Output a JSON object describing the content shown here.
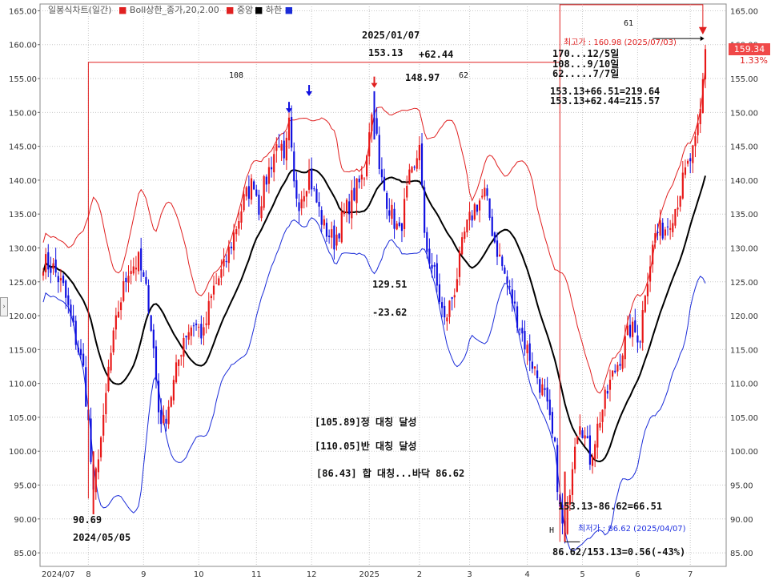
{
  "legend": {
    "title": "일봉식차트(일간)",
    "boll_upper": "Boll상한_종가,20,2.00",
    "middle": "중앙",
    "lower": "하한",
    "colors": {
      "upper": "#e02020",
      "middle": "#000000",
      "lower": "#1a2bd8"
    }
  },
  "price_tag": {
    "value": "159.34",
    "change": "1.33%"
  },
  "annotations": {
    "date_high": "2025/01/07",
    "price_high": "153.13",
    "diff_up": "+62.44",
    "val_14897": "148.97",
    "label_62": "62",
    "label_108": "108",
    "label_61": "61",
    "max_price": "최고가 : 160.98 (2025/07/03)",
    "cycle1": "170...12/5일",
    "cycle2": "108...9/10일",
    "cycle3": "62.....7/7일",
    "calc1": "153.13+66.51=219.64",
    "calc2": "153.13+62.44=215.57",
    "val_12951": "129.51",
    "diff_down": "-23.62",
    "target1": "[105.89]정 대칭 달성",
    "target2": "[110.05]반 대칭 달성",
    "target3": "[86.43] 합 대칭...바닥 86.62",
    "low_price": "90.69",
    "low_date": "2024/05/05",
    "range_calc": "153.13-86.62=66.51",
    "min_price": "최저가 : 86.62 (2025/04/07)",
    "min_marker": "H",
    "ratio_calc": "86.62/153.13=0.56(-43%)"
  },
  "chart_data": {
    "type": "candlestick",
    "title": "",
    "y_range": [
      83,
      166
    ],
    "y_ticks": [
      "165.00",
      "160.00",
      "155.00",
      "150.00",
      "145.00",
      "140.00",
      "135.00",
      "130.00",
      "125.00",
      "120.00",
      "115.00",
      "110.00",
      "105.00",
      "100.00",
      "95.00",
      "90.00",
      "85.00"
    ],
    "y_tick_values": [
      165,
      160,
      155,
      150,
      145,
      140,
      135,
      130,
      125,
      120,
      115,
      110,
      105,
      100,
      95,
      90,
      85
    ],
    "x_labels": [
      "2024/07",
      "8",
      "9",
      "10",
      "11",
      "12",
      "2025",
      "2",
      "3",
      "4",
      "5",
      "6",
      "7"
    ],
    "x_label_index": [
      0,
      18,
      40,
      62,
      85,
      107,
      130,
      150,
      170,
      193,
      215,
      237,
      258
    ],
    "n_days": 265,
    "anchors": [
      [
        0,
        128
      ],
      [
        4,
        127
      ],
      [
        8,
        124
      ],
      [
        12,
        118
      ],
      [
        16,
        112
      ],
      [
        18,
        104
      ],
      [
        20,
        93
      ],
      [
        22,
        100
      ],
      [
        24,
        104
      ],
      [
        26,
        112
      ],
      [
        30,
        121
      ],
      [
        34,
        127
      ],
      [
        38,
        128
      ],
      [
        42,
        122
      ],
      [
        44,
        115
      ],
      [
        46,
        106
      ],
      [
        48,
        104
      ],
      [
        52,
        110
      ],
      [
        56,
        117
      ],
      [
        60,
        119
      ],
      [
        64,
        117
      ],
      [
        66,
        121
      ],
      [
        68,
        124
      ],
      [
        72,
        127
      ],
      [
        76,
        132
      ],
      [
        80,
        137
      ],
      [
        84,
        140
      ],
      [
        86,
        136
      ],
      [
        88,
        139
      ],
      [
        92,
        144
      ],
      [
        94,
        146
      ],
      [
        96,
        142
      ],
      [
        98,
        148
      ],
      [
        100,
        139
      ],
      [
        102,
        137
      ],
      [
        106,
        141
      ],
      [
        108,
        138
      ],
      [
        112,
        133
      ],
      [
        116,
        131
      ],
      [
        120,
        135
      ],
      [
        124,
        138
      ],
      [
        128,
        141
      ],
      [
        130,
        148
      ],
      [
        132,
        151
      ],
      [
        134,
        141
      ],
      [
        138,
        136
      ],
      [
        142,
        132
      ],
      [
        144,
        136
      ],
      [
        146,
        140
      ],
      [
        148,
        141
      ],
      [
        150,
        146
      ],
      [
        152,
        131
      ],
      [
        156,
        126
      ],
      [
        160,
        119
      ],
      [
        164,
        124
      ],
      [
        168,
        132
      ],
      [
        172,
        136
      ],
      [
        176,
        138
      ],
      [
        180,
        131
      ],
      [
        184,
        126
      ],
      [
        188,
        121
      ],
      [
        192,
        116
      ],
      [
        196,
        112
      ],
      [
        200,
        108
      ],
      [
        204,
        100
      ],
      [
        206,
        91
      ],
      [
        208,
        87
      ],
      [
        210,
        95
      ],
      [
        212,
        102
      ],
      [
        214,
        105
      ],
      [
        218,
        99
      ],
      [
        222,
        105
      ],
      [
        226,
        110
      ],
      [
        230,
        114
      ],
      [
        234,
        118
      ],
      [
        238,
        117
      ],
      [
        240,
        124
      ],
      [
        244,
        132
      ],
      [
        248,
        133
      ],
      [
        252,
        136
      ],
      [
        256,
        141
      ],
      [
        260,
        145
      ],
      [
        262,
        150
      ],
      [
        264,
        159.34
      ]
    ],
    "max_point": {
      "date": "2025/07/03",
      "value": 160.98
    },
    "min_point": {
      "date": "2025/04/07",
      "value": 86.62
    },
    "reference_high": 153.13,
    "reference_low": 86.62,
    "series": [
      {
        "name": "Boll상한",
        "color": "#e02020"
      },
      {
        "name": "중앙",
        "color": "#000000"
      },
      {
        "name": "하한",
        "color": "#1a2bd8"
      }
    ]
  }
}
